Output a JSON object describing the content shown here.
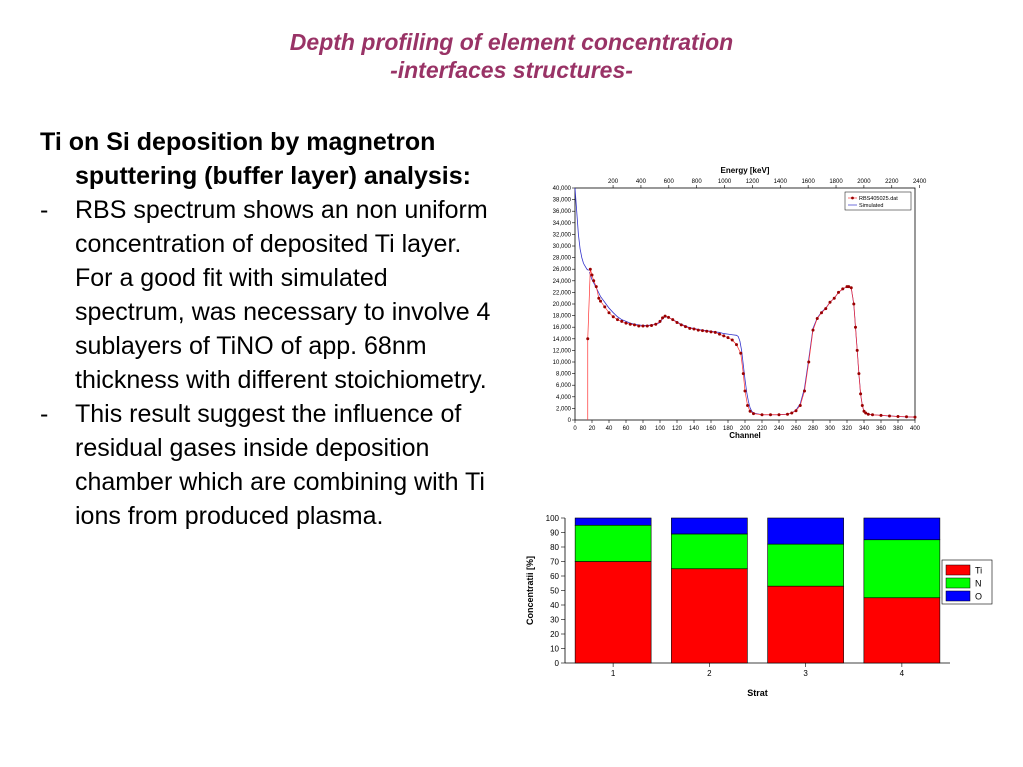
{
  "title": {
    "line1": "Depth profiling of element concentration",
    "line2": "-interfaces structures-"
  },
  "text": {
    "heading": "Ti on Si deposition by magnetron sputtering (buffer layer) analysis:",
    "bullets": [
      {
        "dash": "-",
        "text": "RBS spectrum shows an non uniform concentration of deposited Ti layer. For a good fit with simulated spectrum, was necessary to involve 4 sublayers of TiNO of app. 68nm thickness with different stoichiometry."
      },
      {
        "dash": "-",
        "text": "This result suggest the influence of residual gases inside deposition chamber which are combining with Ti ions from produced plasma."
      }
    ]
  },
  "chart_data": [
    {
      "type": "scatter",
      "title": "",
      "xlabel": "Channel",
      "x2label": "Energy [keV]",
      "ylabel": "",
      "xlim": [
        0,
        400
      ],
      "ylim": [
        0,
        40000
      ],
      "x_ticks": [
        "0",
        "20",
        "40",
        "60",
        "80",
        "100",
        "120",
        "140",
        "160",
        "180",
        "200",
        "220",
        "240",
        "260",
        "280",
        "300",
        "320",
        "340",
        "360",
        "380",
        "400"
      ],
      "x2_ticks": [
        "200",
        "400",
        "600",
        "800",
        "1000",
        "1200",
        "1400",
        "1600",
        "1800",
        "2000",
        "2200",
        "2400"
      ],
      "y_ticks": [
        "0",
        "2,000",
        "4,000",
        "6,000",
        "8,000",
        "10,000",
        "12,000",
        "14,000",
        "16,000",
        "18,000",
        "20,000",
        "22,000",
        "24,000",
        "26,000",
        "28,000",
        "30,000",
        "32,000",
        "34,000",
        "36,000",
        "38,000",
        "40,000"
      ],
      "legend_position": "top-right",
      "series": [
        {
          "name": "RBS405025.dat",
          "color": "#990000",
          "marker": "dot",
          "x": [
            15,
            18,
            20,
            22,
            25,
            28,
            30,
            35,
            40,
            45,
            50,
            55,
            60,
            65,
            70,
            75,
            80,
            85,
            90,
            95,
            100,
            103,
            106,
            110,
            115,
            120,
            125,
            130,
            135,
            140,
            145,
            150,
            155,
            160,
            165,
            170,
            175,
            180,
            185,
            190,
            195,
            198,
            200,
            203,
            206,
            210,
            220,
            230,
            240,
            250,
            255,
            260,
            265,
            270,
            275,
            280,
            285,
            290,
            295,
            300,
            305,
            310,
            315,
            320,
            322,
            325,
            328,
            330,
            332,
            334,
            336,
            338,
            340,
            342,
            345,
            350,
            360,
            370,
            380,
            390,
            400
          ],
          "y": [
            14000,
            26000,
            25000,
            24000,
            23000,
            21000,
            20500,
            19500,
            18500,
            17800,
            17300,
            17000,
            16700,
            16500,
            16400,
            16200,
            16200,
            16200,
            16300,
            16500,
            17000,
            17600,
            17900,
            17700,
            17300,
            16800,
            16400,
            16100,
            15800,
            15700,
            15500,
            15400,
            15300,
            15200,
            15100,
            14800,
            14500,
            14200,
            13800,
            13000,
            11500,
            8000,
            5000,
            2500,
            1500,
            1100,
            900,
            900,
            900,
            1000,
            1200,
            1600,
            2500,
            5000,
            10000,
            15500,
            17500,
            18500,
            19200,
            20300,
            21000,
            22000,
            22600,
            23000,
            23000,
            22800,
            20000,
            16000,
            12000,
            8000,
            4500,
            2500,
            1500,
            1200,
            1000,
            900,
            800,
            700,
            600,
            550,
            500
          ]
        },
        {
          "name": "Simulated",
          "color": "#3333cc",
          "marker": "line",
          "x": [
            17,
            20,
            25,
            30,
            35,
            40,
            45,
            50,
            55,
            60,
            65,
            70,
            75,
            80,
            85,
            90,
            95,
            100,
            103,
            106,
            110,
            115,
            120,
            125,
            130,
            135,
            140,
            145,
            150,
            155,
            160,
            165,
            170,
            175,
            180,
            185,
            190,
            192,
            194,
            196,
            198,
            200,
            202,
            204,
            206,
            208,
            210,
            220,
            230,
            240,
            250,
            255,
            260,
            265,
            270,
            275,
            280,
            285,
            290,
            295,
            300,
            305,
            310,
            315,
            320,
            322,
            325,
            328,
            330,
            332,
            334,
            336,
            338,
            340,
            342,
            345,
            350,
            360,
            370,
            380,
            390,
            400
          ],
          "y": [
            25500,
            24200,
            22800,
            21300,
            20300,
            19300,
            18500,
            17800,
            17300,
            17000,
            16700,
            16500,
            16400,
            16300,
            16300,
            16400,
            16500,
            16800,
            17500,
            17800,
            17700,
            17300,
            16900,
            16500,
            16200,
            15900,
            15800,
            15600,
            15500,
            15400,
            15300,
            15200,
            15100,
            14900,
            14800,
            14700,
            14600,
            14400,
            13600,
            12000,
            9500,
            7000,
            4800,
            3200,
            2100,
            1500,
            1200,
            900,
            900,
            900,
            1000,
            1200,
            1700,
            2800,
            5500,
            10500,
            15800,
            17600,
            18600,
            19300,
            20300,
            21000,
            22000,
            22600,
            23000,
            23000,
            22700,
            20000,
            16000,
            12000,
            8000,
            4500,
            2500,
            1500,
            1200,
            1000,
            900,
            800,
            700,
            600,
            550,
            500
          ],
          "x_pre": [
            0,
            2,
            4,
            6,
            8,
            10,
            12,
            14,
            16
          ],
          "y_pre": [
            40000,
            36000,
            32000,
            29500,
            28000,
            27000,
            26500,
            26000,
            25800
          ]
        }
      ]
    },
    {
      "type": "bar",
      "stacked": true,
      "title": "",
      "xlabel": "Strat",
      "ylabel": "Concentratii [%]",
      "ylim": [
        0,
        100
      ],
      "y_ticks": [
        "0",
        "10",
        "20",
        "30",
        "40",
        "50",
        "60",
        "70",
        "80",
        "90",
        "100"
      ],
      "categories": [
        "1",
        "2",
        "3",
        "4"
      ],
      "legend_position": "right",
      "series": [
        {
          "name": "Ti",
          "color": "#ff0000",
          "values": [
            70,
            65,
            53,
            45
          ]
        },
        {
          "name": "N",
          "color": "#00ff00",
          "values": [
            25,
            24,
            29,
            40
          ]
        },
        {
          "name": "O",
          "color": "#0000ff",
          "values": [
            5,
            11,
            18,
            15
          ]
        }
      ]
    }
  ]
}
